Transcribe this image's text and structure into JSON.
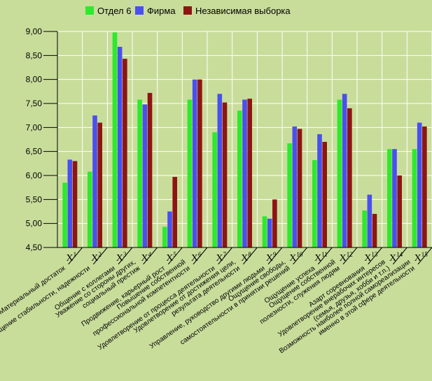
{
  "colors": {
    "background": "#c9dd9b",
    "plot_background": "#c9dd9b",
    "grid": "#ffffff",
    "series": [
      "#2dea2d",
      "#4a4ff0",
      "#8e1414"
    ]
  },
  "chart_data": {
    "type": "bar",
    "title": "",
    "xlabel": "",
    "ylabel": "",
    "ylim": [
      4.5,
      9.0
    ],
    "yticks": [
      "4,50",
      "5,00",
      "5,50",
      "6,00",
      "6,50",
      "7,00",
      "7,50",
      "8,00",
      "8,50",
      "9,00"
    ],
    "grid": true,
    "legend": "top",
    "categories": [
      {
        "base": "X",
        "sup": "1"
      },
      {
        "base": "X",
        "sup": "2"
      },
      {
        "base": "X",
        "sup": "3"
      },
      {
        "base": "X",
        "sup": "4"
      },
      {
        "base": "X",
        "sup": "5"
      },
      {
        "base": "X",
        "sup": "6"
      },
      {
        "base": "X",
        "sup": "7"
      },
      {
        "base": "X",
        "sup": "8"
      },
      {
        "base": "X",
        "sup": "9"
      },
      {
        "base": "X",
        "sup": "10"
      },
      {
        "base": "X",
        "sup": "11"
      },
      {
        "base": "X",
        "sup": "12"
      },
      {
        "base": "X",
        "sup": "13"
      },
      {
        "base": "X",
        "sup": "14"
      },
      {
        "base": "X",
        "sup": "15"
      }
    ],
    "category_descriptions": [
      [
        "Материальный достаток"
      ],
      [
        "Ощущение стабильности, надежности"
      ],
      [
        "Общение с коллегами"
      ],
      [
        "Уважение со стороны других,",
        "социальный престиж"
      ],
      [
        "Продвижение, карьерный рост"
      ],
      [
        "Повышение собственной",
        "профессиональной компетентности"
      ],
      [
        "Удовлетворение от процесса деятельности"
      ],
      [
        "Удовлетворение от достижения цели,",
        "результата деятельности"
      ],
      [
        "Управление, руководство другими людьми"
      ],
      [
        "Ощущение свободы,",
        "самостоятельности в принятии решений"
      ],
      [
        "Ощущение успеха"
      ],
      [
        "Ощущение собственной",
        "полезности, служения людям"
      ],
      [
        "Азарт соревнования"
      ],
      [
        "Удовлетворение внерабочих интересов",
        "(семья, друзья, хобби и т.п.)"
      ],
      [
        "Возможность наиболее полной самореализации",
        "именно в этой сфере деятельности"
      ]
    ],
    "series": [
      {
        "name": "Отдел 6",
        "values": [
          5.85,
          6.08,
          8.98,
          7.58,
          4.93,
          7.58,
          6.9,
          7.35,
          5.15,
          6.67,
          6.32,
          7.58,
          5.27,
          6.55,
          6.55
        ]
      },
      {
        "name": "Фирма",
        "values": [
          6.33,
          7.25,
          8.68,
          7.48,
          5.25,
          8.0,
          7.7,
          7.58,
          5.1,
          7.02,
          6.86,
          7.7,
          5.6,
          6.55,
          7.1
        ]
      },
      {
        "name": "Независимая выборка",
        "values": [
          6.3,
          7.1,
          8.43,
          7.72,
          5.97,
          8.0,
          7.52,
          7.6,
          5.5,
          6.97,
          6.7,
          7.4,
          5.2,
          6.0,
          7.02
        ]
      }
    ]
  }
}
